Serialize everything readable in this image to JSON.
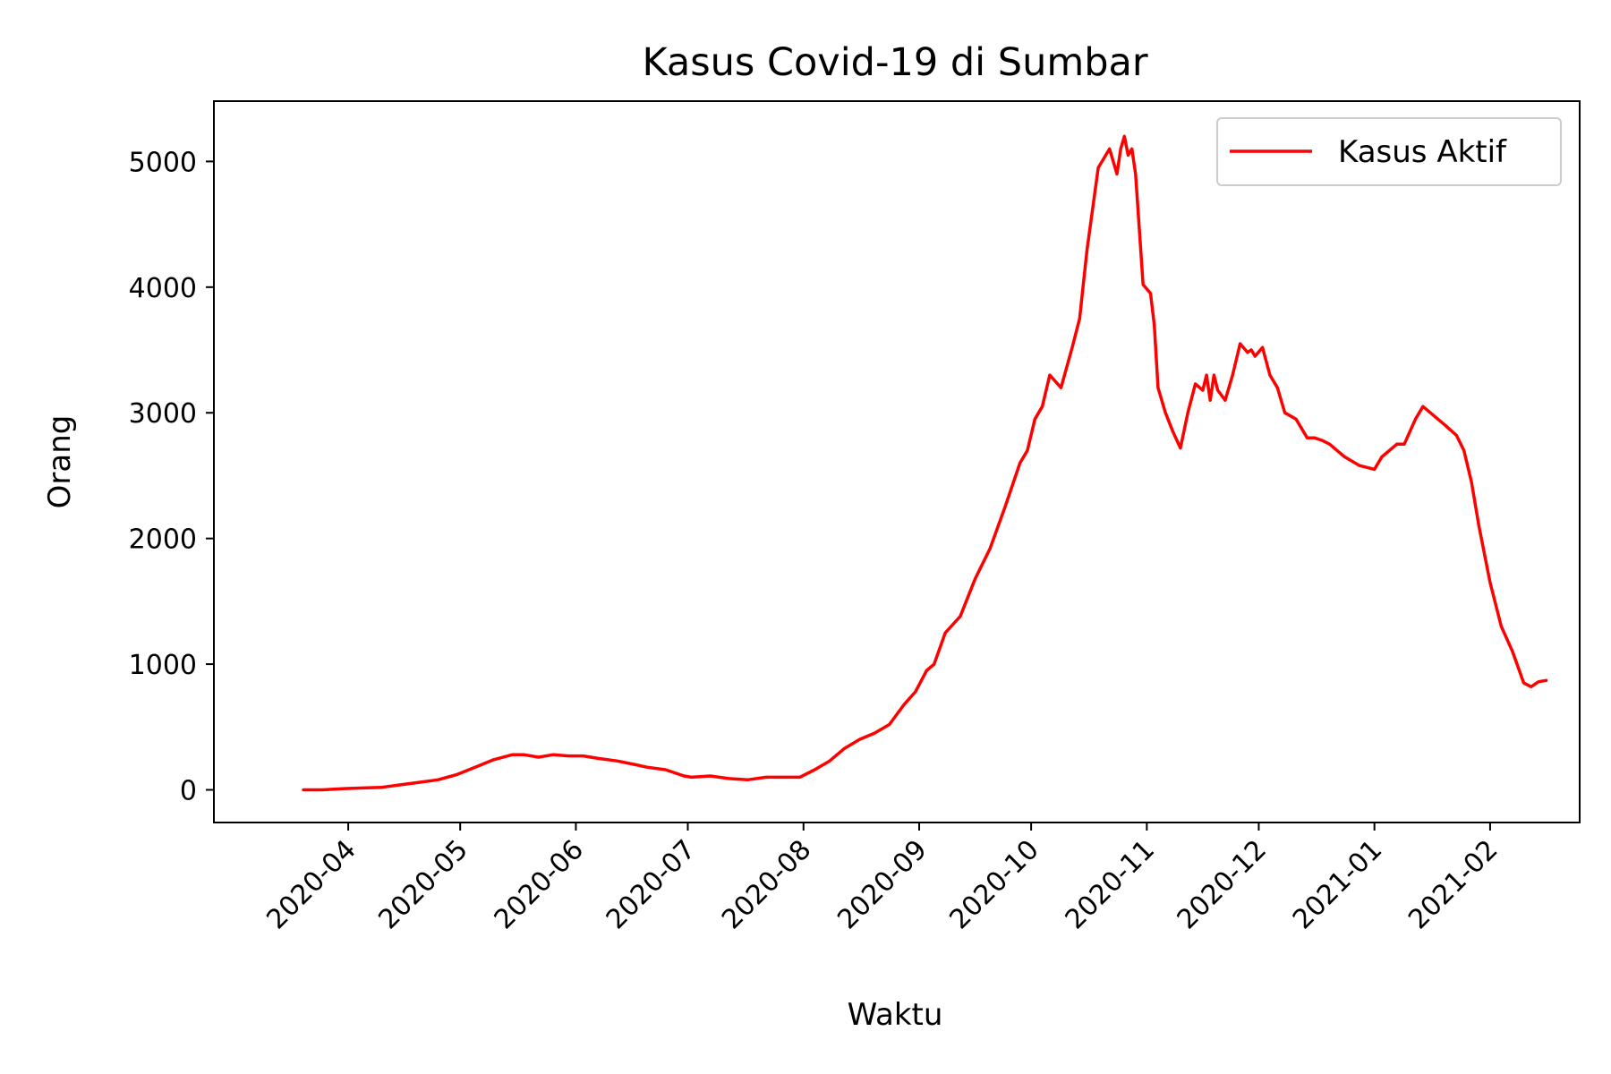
{
  "chart_data": {
    "type": "line",
    "title": "Kasus Covid-19 di Sumbar",
    "xlabel": "Waktu",
    "ylabel": "Orang",
    "xlim": [
      "2020-02-25",
      "2021-02-25"
    ],
    "ylim": [
      -260,
      5480
    ],
    "x_ticks": [
      "2020-04",
      "2020-05",
      "2020-06",
      "2020-07",
      "2020-08",
      "2020-09",
      "2020-10",
      "2020-11",
      "2020-12",
      "2021-01",
      "2021-02"
    ],
    "y_ticks": [
      0,
      1000,
      2000,
      3000,
      4000,
      5000
    ],
    "grid": false,
    "legend": {
      "position": "top-right",
      "entries": [
        "Kasus Aktif"
      ]
    },
    "line_color": "#ff0000",
    "series": [
      {
        "name": "Kasus Aktif",
        "x": [
          "2020-03-20",
          "2020-03-25",
          "2020-03-31",
          "2020-04-05",
          "2020-04-10",
          "2020-04-15",
          "2020-04-20",
          "2020-04-25",
          "2020-04-30",
          "2020-05-05",
          "2020-05-10",
          "2020-05-15",
          "2020-05-18",
          "2020-05-22",
          "2020-05-26",
          "2020-05-30",
          "2020-06-03",
          "2020-06-07",
          "2020-06-12",
          "2020-06-17",
          "2020-06-20",
          "2020-06-25",
          "2020-06-30",
          "2020-07-02",
          "2020-07-07",
          "2020-07-12",
          "2020-07-17",
          "2020-07-22",
          "2020-07-27",
          "2020-07-31",
          "2020-08-04",
          "2020-08-08",
          "2020-08-12",
          "2020-08-16",
          "2020-08-20",
          "2020-08-24",
          "2020-08-28",
          "2020-08-31",
          "2020-09-03",
          "2020-09-05",
          "2020-09-08",
          "2020-09-12",
          "2020-09-16",
          "2020-09-20",
          "2020-09-24",
          "2020-09-28",
          "2020-09-30",
          "2020-10-02",
          "2020-10-04",
          "2020-10-06",
          "2020-10-09",
          "2020-10-12",
          "2020-10-14",
          "2020-10-16",
          "2020-10-19",
          "2020-10-21",
          "2020-10-22",
          "2020-10-24",
          "2020-10-25",
          "2020-10-26",
          "2020-10-27",
          "2020-10-28",
          "2020-10-29",
          "2020-10-31",
          "2020-11-02",
          "2020-11-03",
          "2020-11-04",
          "2020-11-06",
          "2020-11-08",
          "2020-11-10",
          "2020-11-12",
          "2020-11-14",
          "2020-11-16",
          "2020-11-17",
          "2020-11-18",
          "2020-11-19",
          "2020-11-20",
          "2020-11-22",
          "2020-11-24",
          "2020-11-26",
          "2020-11-28",
          "2020-11-29",
          "2020-11-30",
          "2020-12-02",
          "2020-12-04",
          "2020-12-06",
          "2020-12-08",
          "2020-12-11",
          "2020-12-14",
          "2020-12-16",
          "2020-12-18",
          "2020-12-20",
          "2020-12-22",
          "2020-12-24",
          "2020-12-28",
          "2021-01-01",
          "2021-01-03",
          "2021-01-05",
          "2021-01-07",
          "2021-01-09",
          "2021-01-12",
          "2021-01-14",
          "2021-01-16",
          "2021-01-20",
          "2021-01-23",
          "2021-01-25",
          "2021-01-27",
          "2021-01-29",
          "2021-02-01",
          "2021-02-04",
          "2021-02-07",
          "2021-02-10",
          "2021-02-12",
          "2021-02-14",
          "2021-02-16"
        ],
        "values": [
          0,
          0,
          10,
          15,
          20,
          40,
          60,
          80,
          120,
          180,
          240,
          280,
          280,
          260,
          280,
          270,
          270,
          250,
          230,
          200,
          180,
          160,
          110,
          100,
          110,
          90,
          80,
          100,
          100,
          100,
          160,
          230,
          330,
          400,
          450,
          520,
          680,
          780,
          950,
          1000,
          1250,
          1380,
          1680,
          1920,
          2250,
          2600,
          2700,
          2950,
          3050,
          3300,
          3200,
          3520,
          3750,
          4300,
          4950,
          5050,
          5100,
          4900,
          5100,
          5200,
          5050,
          5100,
          4900,
          4020,
          3950,
          3700,
          3200,
          3000,
          2850,
          2720,
          3000,
          3230,
          3180,
          3300,
          3100,
          3300,
          3180,
          3100,
          3300,
          3550,
          3480,
          3500,
          3450,
          3520,
          3300,
          3200,
          3000,
          2950,
          2800,
          2800,
          2780,
          2750,
          2700,
          2650,
          2580,
          2550,
          2650,
          2700,
          2750,
          2750,
          2950,
          3050,
          3000,
          2900,
          2820,
          2700,
          2450,
          2100,
          1650,
          1300,
          1100,
          850,
          820,
          860,
          870
        ]
      }
    ]
  }
}
